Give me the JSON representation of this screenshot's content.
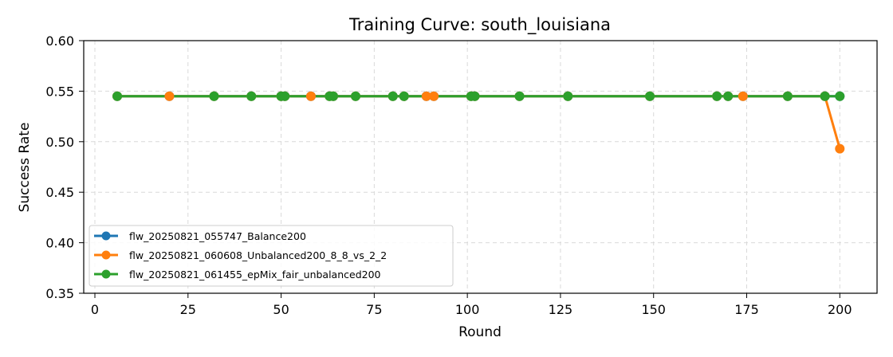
{
  "chart_data": {
    "type": "line",
    "title": "Training Curve: south_louisiana",
    "xlabel": "Round",
    "ylabel": "Success Rate",
    "xlim": [
      -3,
      210
    ],
    "ylim": [
      0.35,
      0.6
    ],
    "xticks": [
      0,
      25,
      50,
      75,
      100,
      125,
      150,
      175,
      200
    ],
    "yticks": [
      0.35,
      0.4,
      0.45,
      0.5,
      0.55,
      0.6
    ],
    "xtick_labels": [
      "0",
      "25",
      "50",
      "75",
      "100",
      "125",
      "150",
      "175",
      "200"
    ],
    "ytick_labels": [
      "0.35",
      "0.40",
      "0.45",
      "0.50",
      "0.55",
      "0.60"
    ],
    "grid": true,
    "legend_position": "lower-left",
    "series": [
      {
        "name": "flw_20250821_055747_Balance200",
        "color": "#1f77b4",
        "x": [
          6,
          20,
          32,
          42,
          50,
          51,
          58,
          63,
          64,
          70,
          80,
          83,
          89,
          91,
          101,
          102,
          114,
          127,
          149,
          167,
          170,
          174,
          186,
          196,
          200
        ],
        "y": [
          0.545,
          0.545,
          0.545,
          0.545,
          0.545,
          0.545,
          0.545,
          0.545,
          0.545,
          0.545,
          0.545,
          0.545,
          0.545,
          0.545,
          0.545,
          0.545,
          0.545,
          0.545,
          0.545,
          0.545,
          0.545,
          0.545,
          0.545,
          0.545,
          0.545
        ]
      },
      {
        "name": "flw_20250821_060608_Unbalanced200_8_8_vs_2_2",
        "color": "#ff7f0e",
        "x": [
          6,
          20,
          32,
          42,
          50,
          51,
          58,
          63,
          64,
          70,
          80,
          83,
          89,
          91,
          101,
          102,
          114,
          127,
          149,
          167,
          170,
          174,
          186,
          196,
          200
        ],
        "y": [
          0.545,
          0.545,
          0.545,
          0.545,
          0.545,
          0.545,
          0.545,
          0.545,
          0.545,
          0.545,
          0.545,
          0.545,
          0.545,
          0.545,
          0.545,
          0.545,
          0.545,
          0.545,
          0.545,
          0.545,
          0.545,
          0.545,
          0.545,
          0.545,
          0.493
        ]
      },
      {
        "name": "flw_20250821_061455_epMix_fair_unbalanced200",
        "color": "#2ca02c",
        "x": [
          6,
          32,
          42,
          50,
          51,
          63,
          64,
          70,
          80,
          83,
          101,
          102,
          114,
          127,
          149,
          167,
          170,
          186,
          196,
          200
        ],
        "y": [
          0.545,
          0.545,
          0.545,
          0.545,
          0.545,
          0.545,
          0.545,
          0.545,
          0.545,
          0.545,
          0.545,
          0.545,
          0.545,
          0.545,
          0.545,
          0.545,
          0.545,
          0.545,
          0.545,
          0.545
        ]
      }
    ]
  }
}
